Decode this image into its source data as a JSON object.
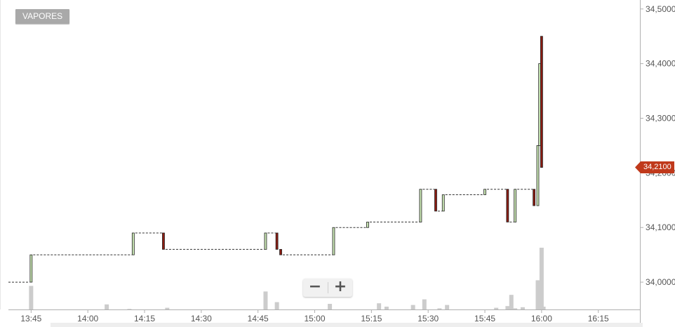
{
  "toolbar": {
    "tag_label": "VAPORES"
  },
  "zoom": {
    "minus_label": "−",
    "plus_label": "+"
  },
  "colors": {
    "up": "#c9e6b4",
    "down": "#8c1c12",
    "volume": "#cccccc",
    "last_price_tag": "#c0391b",
    "axis": "#b0b0b0"
  },
  "chart_data": {
    "type": "candlestick",
    "x_unit": "time",
    "x_ticks": [
      "13:45",
      "14:00",
      "14:15",
      "14:30",
      "14:45",
      "15:00",
      "15:15",
      "15:30",
      "15:45",
      "16:00",
      "16:15"
    ],
    "y_ticks": [
      "34,0000",
      "34,1000",
      "34,2000",
      "34,3000",
      "34,4000",
      "34,5000"
    ],
    "ylim": [
      33.95,
      34.51
    ],
    "xlim": [
      "13:39",
      "16:26"
    ],
    "last_price": 34.21,
    "last_price_label": "34,2100",
    "candles": [
      {
        "time": "13:45",
        "open": 34.0,
        "high": 34.05,
        "low": 34.0,
        "close": 34.05
      },
      {
        "time": "14:12",
        "open": 34.05,
        "high": 34.09,
        "low": 34.05,
        "close": 34.09
      },
      {
        "time": "14:20",
        "open": 34.09,
        "high": 34.09,
        "low": 34.06,
        "close": 34.06
      },
      {
        "time": "14:47",
        "open": 34.06,
        "high": 34.09,
        "low": 34.06,
        "close": 34.09
      },
      {
        "time": "14:50",
        "open": 34.09,
        "high": 34.09,
        "low": 34.06,
        "close": 34.06
      },
      {
        "time": "14:51",
        "open": 34.06,
        "high": 34.06,
        "low": 34.05,
        "close": 34.05
      },
      {
        "time": "15:05",
        "open": 34.05,
        "high": 34.1,
        "low": 34.05,
        "close": 34.1
      },
      {
        "time": "15:14",
        "open": 34.1,
        "high": 34.11,
        "low": 34.1,
        "close": 34.11
      },
      {
        "time": "15:28",
        "open": 34.11,
        "high": 34.17,
        "low": 34.11,
        "close": 34.17
      },
      {
        "time": "15:32",
        "open": 34.17,
        "high": 34.17,
        "low": 34.13,
        "close": 34.13
      },
      {
        "time": "15:34",
        "open": 34.13,
        "high": 34.16,
        "low": 34.13,
        "close": 34.16
      },
      {
        "time": "15:45",
        "open": 34.16,
        "high": 34.17,
        "low": 34.16,
        "close": 34.17
      },
      {
        "time": "15:51",
        "open": 34.17,
        "high": 34.17,
        "low": 34.11,
        "close": 34.11
      },
      {
        "time": "15:53",
        "open": 34.11,
        "high": 34.17,
        "low": 34.11,
        "close": 34.17
      },
      {
        "time": "15:58",
        "open": 34.17,
        "high": 34.17,
        "low": 34.14,
        "close": 34.14
      },
      {
        "time": "15:59",
        "open": 34.14,
        "high": 34.25,
        "low": 34.14,
        "close": 34.25
      },
      {
        "time": "15:59.5",
        "open": 34.25,
        "high": 34.4,
        "low": 34.25,
        "close": 34.4
      },
      {
        "time": "16:00",
        "open": 34.45,
        "high": 34.45,
        "low": 34.21,
        "close": 34.21
      }
    ],
    "volume": [
      {
        "time": "13:45",
        "value": 42
      },
      {
        "time": "14:05",
        "value": 9
      },
      {
        "time": "14:11",
        "value": 1
      },
      {
        "time": "14:21",
        "value": 3
      },
      {
        "time": "14:47",
        "value": 32
      },
      {
        "time": "14:50",
        "value": 13
      },
      {
        "time": "15:04",
        "value": 10
      },
      {
        "time": "15:17",
        "value": 11
      },
      {
        "time": "15:19",
        "value": 5
      },
      {
        "time": "15:26",
        "value": 8
      },
      {
        "time": "15:29",
        "value": 18
      },
      {
        "time": "15:33",
        "value": 2
      },
      {
        "time": "15:35",
        "value": 8
      },
      {
        "time": "15:48",
        "value": 3
      },
      {
        "time": "15:51",
        "value": 6
      },
      {
        "time": "15:52",
        "value": 26
      },
      {
        "time": "15:53",
        "value": 2
      },
      {
        "time": "15:55",
        "value": 4
      },
      {
        "time": "15:59",
        "value": 52
      },
      {
        "time": "16:00",
        "value": 110
      },
      {
        "time": "16:00.5",
        "value": 5
      }
    ]
  }
}
